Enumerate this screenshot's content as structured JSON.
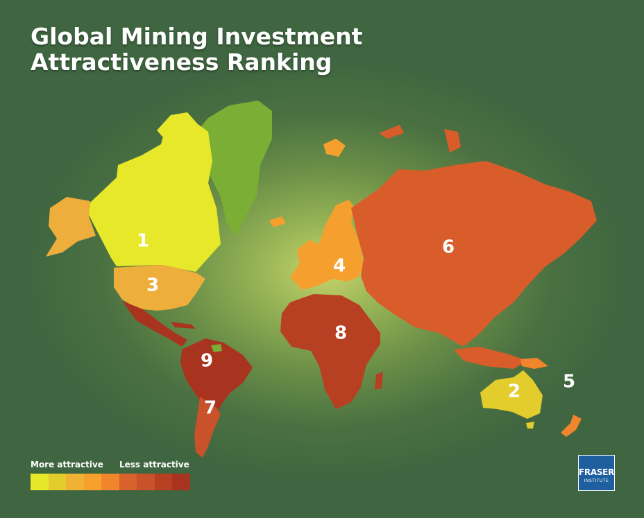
{
  "title_line1": "Global Mining Investment",
  "title_line2": "Attractiveness Ranking",
  "legend": {
    "more_label": "More attractive",
    "less_label": "Less attractive",
    "colors": [
      "#e7e72a",
      "#e2cd2c",
      "#f1b233",
      "#f7a02e",
      "#f1852c",
      "#d9612c",
      "#c9522a",
      "#b73f22",
      "#a8341f"
    ]
  },
  "regions": [
    {
      "name": "Canada",
      "rank": "1",
      "color": "#e8e82a"
    },
    {
      "name": "Australia",
      "rank": "2",
      "color": "#e2cd2c"
    },
    {
      "name": "United States",
      "rank": "3",
      "color": "#eeae3c"
    },
    {
      "name": "Europe",
      "rank": "4",
      "color": "#f5a02e"
    },
    {
      "name": "Oceania",
      "rank": "5",
      "color": "#f1852c"
    },
    {
      "name": "Asia",
      "rank": "6",
      "color": "#d95d2a"
    },
    {
      "name": "Argentina",
      "rank": "7",
      "color": "#c9522a"
    },
    {
      "name": "Africa",
      "rank": "8",
      "color": "#b73f22"
    },
    {
      "name": "Latin America and Caribbean",
      "rank": "9",
      "color": "#a8341f"
    },
    {
      "name": "Greenland",
      "rank": "",
      "color": "#7aae35"
    }
  ],
  "logo": {
    "main": "FRASER",
    "sub": "INSTITUTE"
  }
}
